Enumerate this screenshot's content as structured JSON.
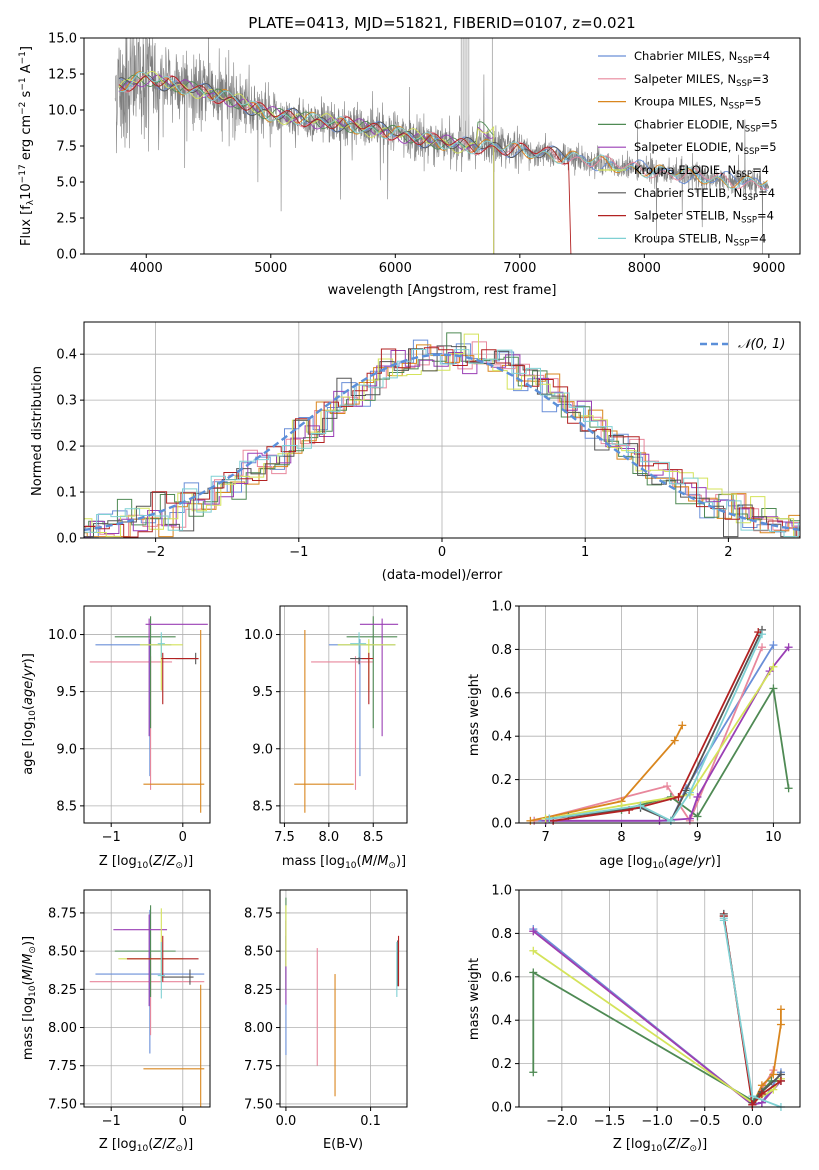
{
  "colors": {
    "Chabrier MILES": "#6a8fd8",
    "Salpeter MILES": "#e8879c",
    "Kroupa MILES": "#d9861e",
    "Chabrier ELODIE": "#4f8a54",
    "Salpeter ELODIE": "#9a3fb5",
    "Kroupa ELODIE": "#d4e35a",
    "Chabrier STELIB": "#555555",
    "Salpeter STELIB": "#b22222",
    "Kroupa STELIB": "#7fd0d3",
    "data": "#808080",
    "normal": "#5b8fd9"
  },
  "chart_data": [
    {
      "id": "spectrum",
      "type": "line",
      "title": "PLATE=0413, MJD=51821, FIBERID=0107, z=0.021",
      "xlabel": "wavelength [Angstrom, rest frame]",
      "ylabel": "Flux [fλ10⁻¹⁷ erg cm⁻² s⁻¹ A⁻¹]",
      "xlim": [
        3500,
        9250
      ],
      "ylim": [
        0,
        15
      ],
      "xticks": [
        4000,
        5000,
        6000,
        7000,
        8000,
        9000
      ],
      "yticks": [
        0.0,
        2.5,
        5.0,
        7.5,
        10.0,
        12.5,
        15.0
      ],
      "grid": false,
      "legend_position": "top-right",
      "legend": [
        {
          "label": "Chabrier MILES, N",
          "sub": "SSP",
          "val": "=4",
          "series": "Chabrier MILES"
        },
        {
          "label": "Salpeter MILES, N",
          "sub": "SSP",
          "val": "=3",
          "series": "Salpeter MILES"
        },
        {
          "label": "Kroupa MILES, N",
          "sub": "SSP",
          "val": "=5",
          "series": "Kroupa MILES"
        },
        {
          "label": "Chabrier ELODIE, N",
          "sub": "SSP",
          "val": "=5",
          "series": "Chabrier ELODIE"
        },
        {
          "label": "Salpeter ELODIE, N",
          "sub": "SSP",
          "val": "=5",
          "series": "Salpeter ELODIE"
        },
        {
          "label": "Kroupa ELODIE, N",
          "sub": "SSP",
          "val": "=4",
          "series": "Kroupa ELODIE"
        },
        {
          "label": "Chabrier STELIB, N",
          "sub": "SSP",
          "val": "=4",
          "series": "Chabrier STELIB"
        },
        {
          "label": "Salpeter STELIB, N",
          "sub": "SSP",
          "val": "=4",
          "series": "Salpeter STELIB"
        },
        {
          "label": "Kroupa STELIB, N",
          "sub": "SSP",
          "val": "=4",
          "series": "Kroupa STELIB"
        }
      ],
      "continuum": {
        "x": [
          3750,
          3900,
          4000,
          4100,
          4300,
          4500,
          4700,
          4900,
          5000,
          5200,
          5400,
          5600,
          5800,
          6000,
          6200,
          6400,
          6600,
          6800,
          7000,
          7200,
          7400,
          7600,
          7800,
          8000,
          8200,
          8400,
          8600,
          8800,
          9000
        ],
        "y": [
          11.5,
          12.0,
          12.2,
          12.0,
          11.6,
          11.2,
          10.7,
          10.0,
          9.7,
          9.5,
          9.2,
          9.0,
          8.7,
          8.4,
          8.0,
          7.7,
          7.5,
          7.4,
          7.2,
          7.0,
          6.7,
          6.4,
          6.1,
          5.9,
          5.6,
          5.4,
          5.2,
          5.0,
          4.9
        ]
      }
    },
    {
      "id": "residuals",
      "type": "histogram",
      "xlabel": "(data-model)/error",
      "ylabel": "Normed distribution",
      "xlim": [
        -2.5,
        2.5
      ],
      "ylim": [
        0,
        0.47
      ],
      "xticks": [
        -2,
        -1,
        0,
        1,
        2
      ],
      "yticks": [
        0.0,
        0.1,
        0.2,
        0.3,
        0.4
      ],
      "grid": true,
      "legend_position": "top-right",
      "legend_label": "𝒩(0, 1)",
      "normal": {
        "mean": 0,
        "sigma": 1
      },
      "bin_width": 0.1
    },
    {
      "id": "age-vs-Z",
      "type": "errorbar",
      "xlabel": "Z [log10(Z/Z⊙)]",
      "ylabel": "age  [log10(age/yr)]",
      "xlim": [
        -1.38,
        0.38
      ],
      "ylim": [
        8.35,
        10.25
      ],
      "xticks": [
        -1,
        0
      ],
      "yticks": [
        8.5,
        9.0,
        9.5,
        10.0
      ],
      "grid": true,
      "points": [
        {
          "series": "Chabrier MILES",
          "x": -0.46,
          "xerr": [
            0.76,
            0.3
          ],
          "y": 9.91,
          "yerr": [
            1.15,
            0.05
          ]
        },
        {
          "series": "Salpeter MILES",
          "x": -0.45,
          "xerr": [
            0.85,
            0.3
          ],
          "y": 9.76,
          "yerr": [
            1.12,
            0.05
          ]
        },
        {
          "series": "Kroupa MILES",
          "x": 0.25,
          "xerr": [
            0.8,
            0.05
          ],
          "y": 8.69,
          "yerr": [
            0.25,
            1.35
          ]
        },
        {
          "series": "Chabrier ELODIE",
          "x": -0.45,
          "xerr": [
            0.5,
            0.35
          ],
          "y": 9.98,
          "yerr": [
            0.8,
            0.18
          ]
        },
        {
          "series": "Salpeter ELODIE",
          "x": -0.47,
          "xerr": [
            0.05,
            0.82
          ],
          "y": 10.09,
          "yerr": [
            0.98,
            0.05
          ]
        },
        {
          "series": "Kroupa ELODIE",
          "x": -0.3,
          "xerr": [
            0.3,
            0.3
          ],
          "y": 9.91,
          "yerr": [
            0.4,
            0.05
          ]
        },
        {
          "series": "Chabrier STELIB",
          "x": 0.18,
          "xerr": [
            0.28,
            0.04
          ],
          "y": 9.79,
          "yerr": [
            0.05,
            0.05
          ]
        },
        {
          "series": "Salpeter STELIB",
          "x": -0.28,
          "xerr": [
            0.02,
            0.5
          ],
          "y": 9.79,
          "yerr": [
            0.4,
            0.05
          ]
        },
        {
          "series": "Kroupa STELIB",
          "x": -0.3,
          "xerr": [
            0.05,
            0.05
          ],
          "y": 9.92,
          "yerr": [
            0.12,
            0.1
          ]
        }
      ]
    },
    {
      "id": "age-vs-mass",
      "type": "errorbar",
      "xlabel": "mass [log10(M/M⊙)]",
      "ylabel": "",
      "xlim": [
        7.45,
        8.88
      ],
      "ylim": [
        8.35,
        10.25
      ],
      "xticks": [
        7.5,
        8.0,
        8.5
      ],
      "yticks": [
        8.5,
        9.0,
        9.5,
        10.0
      ],
      "grid": true,
      "points": [
        {
          "series": "Chabrier MILES",
          "x": 8.35,
          "xerr": [
            0.35,
            0.4
          ],
          "y": 9.91,
          "yerr": [
            1.15,
            0.05
          ]
        },
        {
          "series": "Salpeter MILES",
          "x": 8.3,
          "xerr": [
            0.5,
            0.2
          ],
          "y": 9.76,
          "yerr": [
            1.12,
            0.05
          ]
        },
        {
          "series": "Kroupa MILES",
          "x": 7.73,
          "xerr": [
            0.12,
            0.55
          ],
          "y": 8.69,
          "yerr": [
            0.25,
            1.35
          ]
        },
        {
          "series": "Chabrier ELODIE",
          "x": 8.5,
          "xerr": [
            0.3,
            0.27
          ],
          "y": 9.98,
          "yerr": [
            0.8,
            0.18
          ]
        },
        {
          "series": "Salpeter ELODIE",
          "x": 8.6,
          "xerr": [
            0.25,
            0.18
          ],
          "y": 10.09,
          "yerr": [
            0.98,
            0.05
          ]
        },
        {
          "series": "Kroupa ELODIE",
          "x": 8.45,
          "xerr": [
            0.35,
            0.3
          ],
          "y": 9.91,
          "yerr": [
            0.4,
            0.05
          ]
        },
        {
          "series": "Chabrier STELIB",
          "x": 8.34,
          "xerr": [
            0.1,
            0.1
          ],
          "y": 9.79,
          "yerr": [
            0.05,
            0.05
          ]
        },
        {
          "series": "Salpeter STELIB",
          "x": 8.45,
          "xerr": [
            0.08,
            0.05
          ],
          "y": 9.79,
          "yerr": [
            0.4,
            0.05
          ]
        },
        {
          "series": "Kroupa STELIB",
          "x": 8.34,
          "xerr": [
            0.1,
            0.08
          ],
          "y": 9.92,
          "yerr": [
            0.12,
            0.1
          ]
        }
      ]
    },
    {
      "id": "weight-vs-age",
      "type": "line",
      "xlabel": "age  [log10(age/yr)]",
      "ylabel": "mass weight",
      "xlim": [
        6.65,
        10.35
      ],
      "ylim": [
        0,
        1.0
      ],
      "xticks": [
        7,
        8,
        9,
        10
      ],
      "yticks": [
        0.0,
        0.2,
        0.4,
        0.6,
        0.8,
        1.0
      ],
      "grid": true,
      "series": [
        {
          "name": "Chabrier MILES",
          "x": [
            6.85,
            8.65,
            8.85,
            10.0
          ],
          "y": [
            0.01,
            0.01,
            0.16,
            0.82
          ]
        },
        {
          "name": "Salpeter MILES",
          "x": [
            6.85,
            8.6,
            8.9,
            9.85
          ],
          "y": [
            0.01,
            0.17,
            0.01,
            0.81
          ]
        },
        {
          "name": "Kroupa MILES",
          "x": [
            6.8,
            8.0,
            8.7,
            8.8
          ],
          "y": [
            0.01,
            0.1,
            0.38,
            0.45
          ]
        },
        {
          "name": "Chabrier ELODIE",
          "x": [
            7.3,
            8.0,
            8.65,
            9.0,
            10.0,
            10.2
          ],
          "y": [
            0.03,
            0.06,
            0.12,
            0.03,
            0.62,
            0.16
          ]
        },
        {
          "name": "Salpeter ELODIE",
          "x": [
            7.0,
            8.5,
            8.9,
            9.0,
            9.95,
            10.2
          ],
          "y": [
            0.01,
            0.01,
            0.02,
            0.12,
            0.7,
            0.81
          ]
        },
        {
          "name": "Kroupa ELODIE",
          "x": [
            7.0,
            8.0,
            8.9,
            10.0
          ],
          "y": [
            0.02,
            0.08,
            0.13,
            0.72
          ]
        },
        {
          "name": "Chabrier STELIB",
          "x": [
            7.05,
            8.25,
            8.65,
            8.85,
            9.85
          ],
          "y": [
            0.02,
            0.07,
            0.01,
            0.15,
            0.89
          ]
        },
        {
          "name": "Salpeter STELIB",
          "x": [
            7.1,
            8.1,
            8.75,
            9.8
          ],
          "y": [
            0.01,
            0.06,
            0.12,
            0.88
          ]
        },
        {
          "name": "Kroupa STELIB",
          "x": [
            7.05,
            8.25,
            8.65,
            8.9,
            9.85
          ],
          "y": [
            0.02,
            0.08,
            0.01,
            0.14,
            0.87
          ]
        }
      ]
    },
    {
      "id": "mass-vs-Z",
      "type": "errorbar",
      "xlabel": "Z [log10(Z/Z⊙)]",
      "ylabel": "mass [log10(M/M⊙)]",
      "xlim": [
        -1.38,
        0.38
      ],
      "ylim": [
        7.48,
        8.9
      ],
      "xticks": [
        -1,
        0
      ],
      "yticks": [
        7.5,
        7.75,
        8.0,
        8.25,
        8.5,
        8.75
      ],
      "grid": true,
      "points": [
        {
          "series": "Chabrier MILES",
          "x": -0.46,
          "xerr": [
            0.76,
            0.76
          ],
          "y": 8.35,
          "yerr": [
            0.52,
            0.42
          ]
        },
        {
          "series": "Salpeter MILES",
          "x": -0.45,
          "xerr": [
            0.85,
            0.75
          ],
          "y": 8.3,
          "yerr": [
            0.35,
            0.18
          ]
        },
        {
          "series": "Kroupa MILES",
          "x": 0.25,
          "xerr": [
            0.8,
            0.05
          ],
          "y": 7.73,
          "yerr": [
            0.25,
            0.55
          ]
        },
        {
          "series": "Chabrier ELODIE",
          "x": -0.45,
          "xerr": [
            0.5,
            0.35
          ],
          "y": 8.5,
          "yerr": [
            0.3,
            0.3
          ]
        },
        {
          "series": "Salpeter ELODIE",
          "x": -0.47,
          "xerr": [
            0.5,
            0.25
          ],
          "y": 8.64,
          "yerr": [
            0.5,
            0.1
          ]
        },
        {
          "series": "Kroupa ELODIE",
          "x": -0.3,
          "xerr": [
            0.6,
            0.3
          ],
          "y": 8.45,
          "yerr": [
            0.15,
            0.33
          ]
        },
        {
          "series": "Chabrier STELIB",
          "x": 0.1,
          "xerr": [
            0.4,
            0.05
          ],
          "y": 8.33,
          "yerr": [
            0.05,
            0.05
          ]
        },
        {
          "series": "Salpeter STELIB",
          "x": -0.28,
          "xerr": [
            0.5,
            0.5
          ],
          "y": 8.45,
          "yerr": [
            0.15,
            0.15
          ]
        },
        {
          "series": "Kroupa STELIB",
          "x": -0.3,
          "xerr": [
            0.05,
            0.05
          ],
          "y": 8.34,
          "yerr": [
            0.15,
            0.22
          ]
        }
      ]
    },
    {
      "id": "mass-vs-ebv",
      "type": "errorbar",
      "xlabel": "E(B-V)",
      "ylabel": "",
      "xlim": [
        -0.007,
        0.143
      ],
      "ylim": [
        7.48,
        8.9
      ],
      "xticks": [
        0.0,
        0.1
      ],
      "yticks": [
        7.5,
        7.75,
        8.0,
        8.25,
        8.5,
        8.75
      ],
      "grid": true,
      "points": [
        {
          "series": "Chabrier MILES",
          "x": 0.0,
          "xerr": [
            0,
            0
          ],
          "y": 8.3,
          "yerr": [
            0.48,
            0.3
          ]
        },
        {
          "series": "Salpeter MILES",
          "x": 0.037,
          "xerr": [
            0,
            0
          ],
          "y": 8.3,
          "yerr": [
            0.55,
            0.22
          ]
        },
        {
          "series": "Kroupa MILES",
          "x": 0.058,
          "xerr": [
            0,
            0
          ],
          "y": 7.73,
          "yerr": [
            0.18,
            0.62
          ]
        },
        {
          "series": "Chabrier ELODIE",
          "x": 0.0,
          "xerr": [
            0,
            0
          ],
          "y": 8.55,
          "yerr": [
            0.3,
            0.3
          ]
        },
        {
          "series": "Salpeter ELODIE",
          "x": 0.0,
          "xerr": [
            0,
            0
          ],
          "y": 8.4,
          "yerr": [
            0.25,
            0.3
          ]
        },
        {
          "series": "Kroupa ELODIE",
          "x": 0.0,
          "xerr": [
            0,
            0
          ],
          "y": 8.55,
          "yerr": [
            0.15,
            0.25
          ]
        },
        {
          "series": "Chabrier STELIB",
          "x": 0.132,
          "xerr": [
            0,
            0
          ],
          "y": 8.42,
          "yerr": [
            0.15,
            0.15
          ]
        },
        {
          "series": "Salpeter STELIB",
          "x": 0.133,
          "xerr": [
            0,
            0
          ],
          "y": 8.45,
          "yerr": [
            0.18,
            0.15
          ]
        },
        {
          "series": "Kroupa STELIB",
          "x": 0.131,
          "xerr": [
            0,
            0
          ],
          "y": 8.38,
          "yerr": [
            0.18,
            0.18
          ]
        }
      ]
    },
    {
      "id": "weight-vs-Z",
      "type": "line",
      "xlabel": "Z [log10(Z/Z⊙)]",
      "ylabel": "mass weight",
      "xlim": [
        -2.45,
        0.5
      ],
      "ylim": [
        0,
        1.0
      ],
      "xticks": [
        -2.0,
        -1.5,
        -1.0,
        -0.5,
        0.0
      ],
      "yticks": [
        0.0,
        0.2,
        0.4,
        0.6,
        0.8,
        1.0
      ],
      "grid": true,
      "series": [
        {
          "name": "Chabrier MILES",
          "x": [
            -2.3,
            0.0,
            0.1,
            0.3
          ],
          "y": [
            0.82,
            0.01,
            0.02,
            0.16
          ]
        },
        {
          "name": "Salpeter MILES",
          "x": [
            -2.3,
            0.0,
            0.22
          ],
          "y": [
            0.81,
            0.01,
            0.17
          ]
        },
        {
          "name": "Kroupa MILES",
          "x": [
            0.0,
            0.1,
            0.22,
            0.3,
            0.3
          ],
          "y": [
            0.01,
            0.1,
            0.15,
            0.38,
            0.45
          ]
        },
        {
          "name": "Chabrier ELODIE",
          "x": [
            -2.3,
            -2.3,
            0.0,
            0.2,
            0.3
          ],
          "y": [
            0.16,
            0.62,
            0.03,
            0.12,
            0.12
          ]
        },
        {
          "name": "Salpeter ELODIE",
          "x": [
            -2.3,
            0.0,
            0.1,
            0.3
          ],
          "y": [
            0.81,
            0.01,
            0.02,
            0.12
          ]
        },
        {
          "name": "Kroupa ELODIE",
          "x": [
            -2.3,
            0.0,
            0.22,
            0.3
          ],
          "y": [
            0.72,
            0.02,
            0.08,
            0.13
          ]
        },
        {
          "name": "Chabrier STELIB",
          "x": [
            -0.3,
            -0.3,
            0.0,
            0.1,
            0.3
          ],
          "y": [
            0.89,
            0.88,
            0.02,
            0.07,
            0.15
          ]
        },
        {
          "name": "Salpeter STELIB",
          "x": [
            -0.3,
            0.0,
            0.1,
            0.3
          ],
          "y": [
            0.88,
            0.01,
            0.06,
            0.12
          ]
        },
        {
          "name": "Kroupa STELIB",
          "x": [
            -0.3,
            -0.3,
            0.0,
            0.3
          ],
          "y": [
            0.87,
            0.86,
            0.05,
            0.0
          ]
        }
      ]
    }
  ]
}
